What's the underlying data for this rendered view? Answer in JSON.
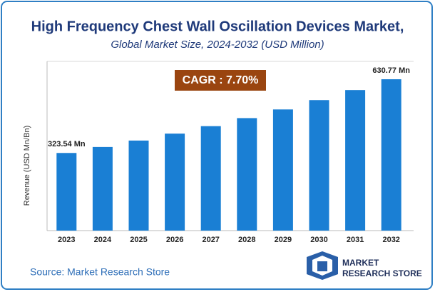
{
  "chart_data": {
    "type": "bar",
    "title": "High Frequency Chest Wall Oscillation Devices Market,",
    "subtitle": "Global Market Size, 2024-2032 (USD Million)",
    "annotation": "CAGR : 7.70%",
    "y_label": "Revenue (USD Mn/Bn)",
    "categories": [
      "2023",
      "2024",
      "2025",
      "2026",
      "2027",
      "2028",
      "2029",
      "2030",
      "2031",
      "2032"
    ],
    "values": [
      323.54,
      348.45,
      375.28,
      404.18,
      435.3,
      468.82,
      504.92,
      543.8,
      585.67,
      630.77
    ],
    "value_labels": [
      "323.54 Mn",
      null,
      null,
      null,
      null,
      null,
      null,
      null,
      null,
      "630.77 Mn"
    ],
    "color": "#1a7fd4"
  },
  "footer": {
    "source": "Source: Market Research Store",
    "logo_line1": "MARKET",
    "logo_line2": "RESEARCH STORE"
  }
}
